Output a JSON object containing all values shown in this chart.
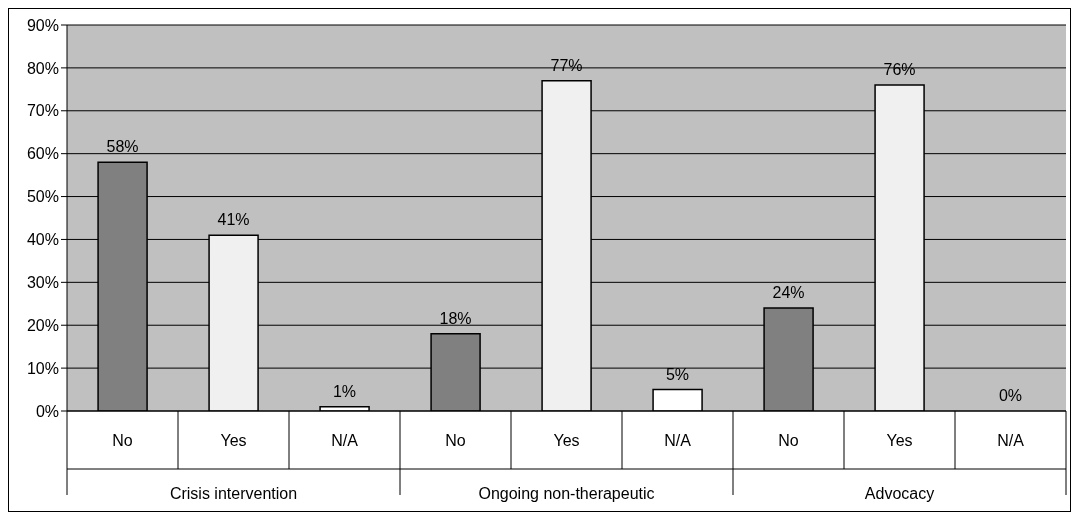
{
  "chart_data": {
    "type": "bar",
    "categories": [
      "No",
      "Yes",
      "N/A",
      "No",
      "Yes",
      "N/A",
      "No",
      "Yes",
      "N/A"
    ],
    "values": [
      58,
      41,
      1,
      18,
      77,
      5,
      24,
      76,
      0
    ],
    "colors": [
      "#808080",
      "#f0f0f0",
      "#ffffff",
      "#808080",
      "#f0f0f0",
      "#ffffff",
      "#808080",
      "#f0f0f0",
      "#ffffff"
    ],
    "value_labels": [
      "58%",
      "41%",
      "1%",
      "18%",
      "77%",
      "5%",
      "24%",
      "76%",
      "0%"
    ],
    "annotations": [
      "Crisis intervention",
      "Ongoing non-therapeutic",
      "Advocacy"
    ],
    "ylim": [
      0,
      90
    ],
    "yticks": [
      {
        "value": 0,
        "label": "0%"
      },
      {
        "value": 10,
        "label": "10%"
      },
      {
        "value": 20,
        "label": "20%"
      },
      {
        "value": 30,
        "label": "30%"
      },
      {
        "value": 40,
        "label": "40%"
      },
      {
        "value": 50,
        "label": "50%"
      },
      {
        "value": 60,
        "label": "60%"
      },
      {
        "value": 70,
        "label": "70%"
      },
      {
        "value": 80,
        "label": "80%"
      },
      {
        "value": 90,
        "label": "90%"
      }
    ],
    "grid": "y",
    "legend": false
  }
}
